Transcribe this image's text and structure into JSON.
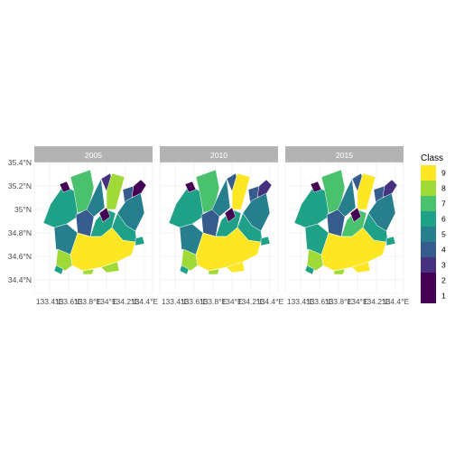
{
  "figure": {
    "type": "choropleth-facets",
    "panel_background": "#ffffff",
    "grid_color": "#ebebeb",
    "strip_color": "#b3b3b3",
    "strip_text_color": "#ffffff",
    "axis_text_color": "#4d4d4d",
    "region_border_color": "#ffffff"
  },
  "panels": [
    {
      "label": "2005"
    },
    {
      "label": "2010"
    },
    {
      "label": "2015"
    }
  ],
  "axes": {
    "y_ticks": [
      "35.4°N",
      "35.2°N",
      "35°N",
      "34.8°N",
      "34.6°N",
      "34.4°N"
    ],
    "x_ticks": [
      "133.4°E",
      "133.6°E",
      "133.8°E",
      "134°E",
      "134.2°E",
      "134.4°E"
    ]
  },
  "legend": {
    "title": "Class",
    "placement": "right",
    "items": [
      {
        "label": "9",
        "color": "#FDE725"
      },
      {
        "label": "8",
        "color": "#A0DA39"
      },
      {
        "label": "7",
        "color": "#4AC16D"
      },
      {
        "label": "6",
        "color": "#1FA187"
      },
      {
        "label": "5",
        "color": "#277F8E"
      },
      {
        "label": "4",
        "color": "#365C8D"
      },
      {
        "label": "3",
        "color": "#46327E"
      },
      {
        "label": "2",
        "color": "#440154"
      },
      {
        "label": "1",
        "color": "#440154"
      }
    ]
  }
}
